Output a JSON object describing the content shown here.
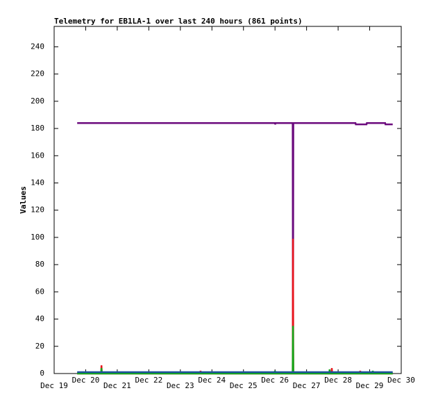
{
  "chart_data": {
    "type": "line",
    "title": "Telemetry for EB1LA-1 over last 240 hours (861 points)",
    "y_label": "Values",
    "xlim": [
      19,
      30
    ],
    "xticks": [
      {
        "value": 19,
        "label": "Dec 19"
      },
      {
        "value": 20,
        "label": "Dec 20"
      },
      {
        "value": 21,
        "label": "Dec 21"
      },
      {
        "value": 22,
        "label": "Dec 22"
      },
      {
        "value": 23,
        "label": "Dec 23"
      },
      {
        "value": 24,
        "label": "Dec 24"
      },
      {
        "value": 25,
        "label": "Dec 25"
      },
      {
        "value": 26,
        "label": "Dec 26"
      },
      {
        "value": 27,
        "label": "Dec 27"
      },
      {
        "value": 28,
        "label": "Dec 28"
      },
      {
        "value": 29,
        "label": "Dec 29"
      },
      {
        "value": 30,
        "label": "Dec 30"
      }
    ],
    "ylim": [
      0,
      255
    ],
    "yticks": [
      0,
      20,
      40,
      60,
      80,
      100,
      120,
      140,
      160,
      180,
      200,
      220,
      240
    ],
    "series": [
      {
        "color": "#6b0a7d",
        "x": [
          19.73,
          26.0,
          26.0,
          26.02,
          26.56,
          26.57,
          26.58,
          28.55,
          28.56,
          28.9,
          28.91,
          29.49,
          29.5,
          29.73
        ],
        "values": [
          184,
          184,
          183,
          184,
          184,
          0,
          184,
          184,
          183,
          183,
          184,
          184,
          183,
          183
        ]
      },
      {
        "color": "#e8141c",
        "x": [
          19.73,
          20.49,
          20.5,
          20.51,
          23.63,
          23.64,
          23.65,
          26.56,
          26.57,
          26.58,
          27.79,
          27.8,
          27.81,
          28.69,
          28.7,
          28.71,
          29.73
        ],
        "values": [
          0,
          0,
          6,
          0,
          0,
          2,
          0,
          0,
          99,
          0,
          0,
          4,
          0,
          0,
          2,
          0,
          0
        ]
      },
      {
        "color": "#12a81a",
        "x": [
          19.73,
          20.49,
          20.5,
          20.51,
          25.99,
          26.0,
          26.01,
          26.56,
          26.57,
          26.58,
          27.72,
          27.73,
          27.74,
          29.09,
          29.1,
          29.11,
          29.73
        ],
        "values": [
          0,
          0,
          4,
          0,
          0,
          2,
          0,
          0,
          35,
          0,
          0,
          3,
          0,
          0,
          2,
          0,
          0
        ]
      },
      {
        "color": "#1d4f9c",
        "x": [
          19.73,
          29.73
        ],
        "values": [
          1,
          1
        ]
      }
    ]
  }
}
